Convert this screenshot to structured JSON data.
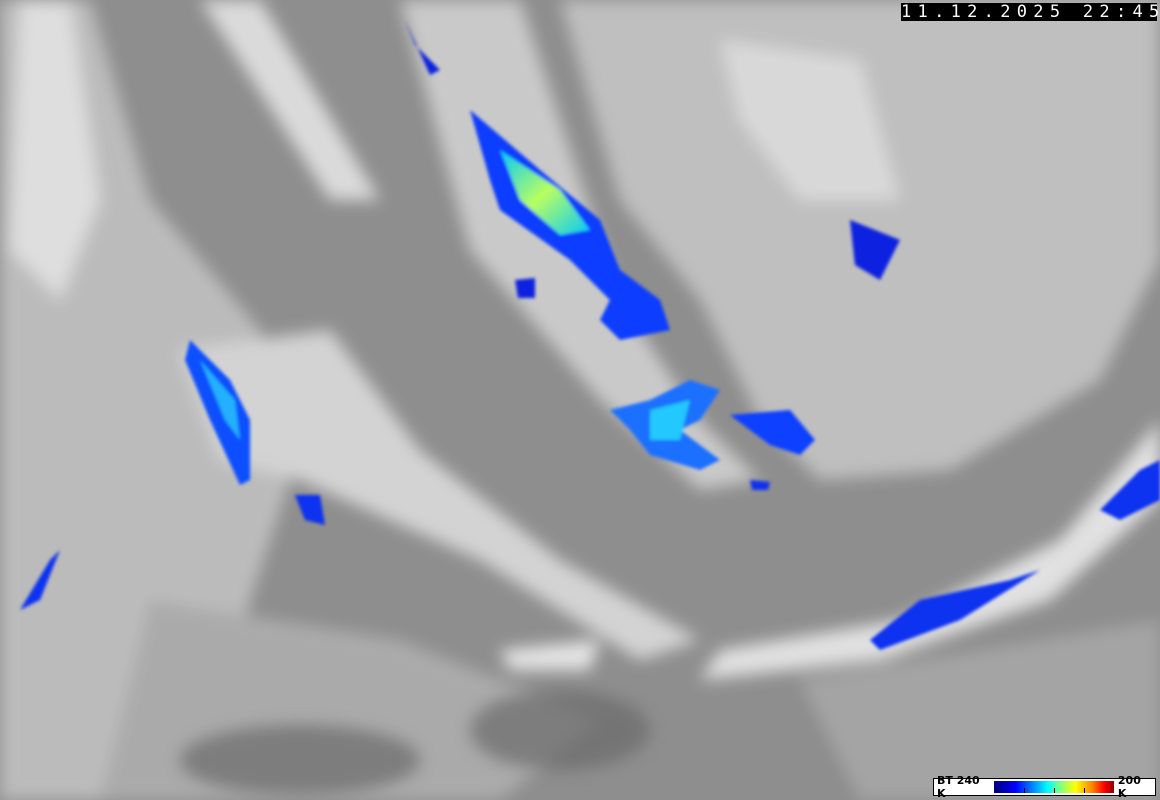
{
  "timestamp": "11.12.2025 22:45",
  "legend": {
    "left_label": "BT 240 K",
    "right_label": "200 K",
    "colors": [
      "#00007a",
      "#0000ff",
      "#00a0ff",
      "#00ffff",
      "#80ff80",
      "#ffff00",
      "#ff8000",
      "#ff0000",
      "#8a0000"
    ]
  }
}
